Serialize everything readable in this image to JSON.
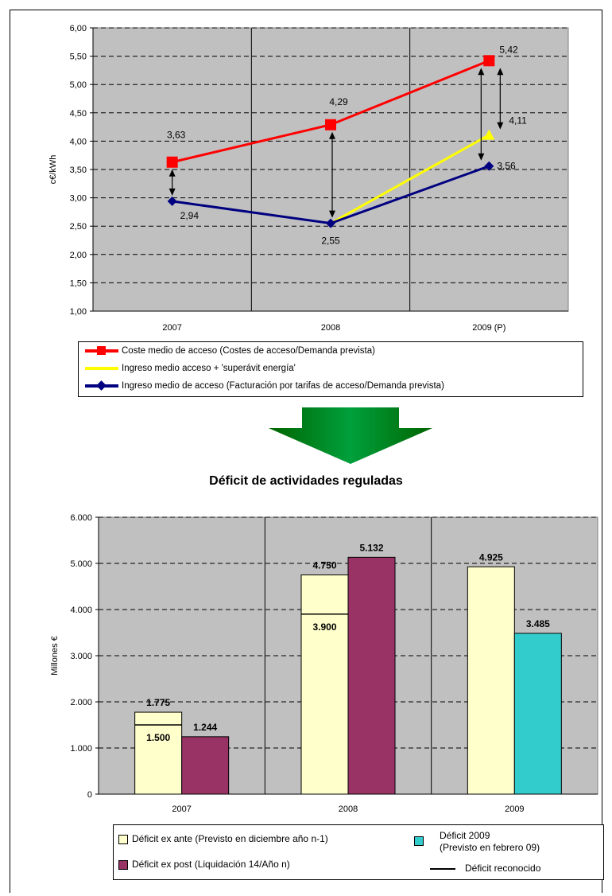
{
  "chart_data": [
    {
      "type": "line",
      "ylabel": "c€/kWh",
      "ylim": [
        1.0,
        6.0
      ],
      "yticks": [
        "1,00",
        "1,50",
        "2,00",
        "2,50",
        "3,00",
        "3,50",
        "4,00",
        "4,50",
        "5,00",
        "5,50",
        "6,00"
      ],
      "categories": [
        "2007",
        "2008",
        "2009 (P)"
      ],
      "grid": "horizontal dashed, vertical solid",
      "series": [
        {
          "name": "Coste medio de acceso (Costes de acceso/Demanda prevista)",
          "color": "#ff0000",
          "marker": "square",
          "values": [
            3.63,
            4.29,
            5.42
          ],
          "labels": [
            "3,63",
            "4,29",
            "5,42"
          ]
        },
        {
          "name": "Ingreso medio acceso + 'superávit energía'",
          "color": "#ffff00",
          "marker": "triangle",
          "values": [
            null,
            2.55,
            4.11
          ],
          "labels": [
            "",
            "",
            "4,11"
          ]
        },
        {
          "name": "Ingreso medio de acceso (Facturación por tarifas de acceso/Demanda prevista)",
          "color": "#000080",
          "marker": "diamond",
          "values": [
            2.94,
            2.55,
            3.56
          ],
          "labels": [
            "2,94",
            "2,55",
            "3,56"
          ]
        }
      ],
      "legend": "below"
    },
    {
      "type": "bar",
      "title": "Déficit de actividades reguladas",
      "ylabel": "Millones €",
      "ylim": [
        0,
        6000
      ],
      "yticks": [
        "0",
        "1.000",
        "2.000",
        "3.000",
        "4.000",
        "5.000",
        "6.000"
      ],
      "categories": [
        "2007",
        "2008",
        "2009"
      ],
      "series": [
        {
          "name": "Déficit ex ante (Previsto en diciembre año n-1)",
          "color": "#ffffcc",
          "values": [
            1775,
            4750,
            4925
          ],
          "labels": [
            "1.775",
            "4.750",
            "4.925"
          ]
        },
        {
          "name": "Déficit ex post (Liquidación 14/Año n)",
          "color": "#993366",
          "values": [
            1244,
            5132,
            null
          ],
          "labels": [
            "1.244",
            "5.132",
            ""
          ]
        },
        {
          "name": "Déficit 2009 (Previsto en febrero 09)",
          "color": "#33cccc",
          "values": [
            null,
            null,
            3485
          ],
          "labels": [
            "",
            "",
            "3.485"
          ]
        }
      ],
      "reconocido": {
        "name": "Déficit reconocido",
        "values": [
          1500,
          3900,
          null
        ],
        "labels": [
          "1.500",
          "3.900",
          ""
        ]
      },
      "legend": "below"
    }
  ],
  "legend2": {
    "exante": "Déficit ex ante (Previsto en diciembre año n-1)",
    "expost": "Déficit ex post (Liquidación 14/Año n)",
    "d2009_line1": "Déficit 2009",
    "d2009_line2": "(Previsto en febrero 09)",
    "reconocido": "Déficit reconocido"
  },
  "colors": {
    "plot_bg": "#c0c0c0",
    "arrow_fill": "#008000",
    "arrow_shade": "#00b050"
  }
}
